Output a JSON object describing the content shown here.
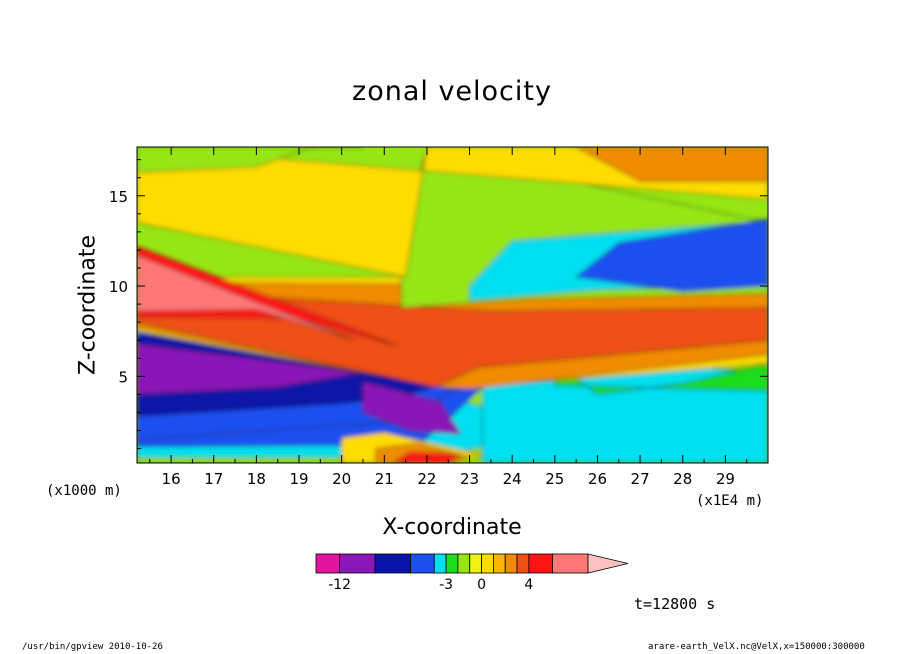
{
  "chart_data": {
    "type": "heatmap",
    "title": "zonal velocity",
    "xlabel": "X-coordinate",
    "ylabel": "Z-coordinate",
    "x_multiplier": "(x1E4 m)",
    "y_multiplier": "(x1000 m)",
    "xlim": [
      15.2,
      30.0
    ],
    "ylim": [
      0.2,
      17.7
    ],
    "xticks": [
      "16",
      "17",
      "18",
      "19",
      "20",
      "21",
      "22",
      "23",
      "24",
      "25",
      "26",
      "27",
      "28",
      "29"
    ],
    "yticks": [
      "5",
      "10",
      "15"
    ],
    "colorbar": {
      "levels": [
        -14,
        -12,
        -9,
        -6,
        -4,
        -3,
        -2,
        -1,
        0,
        1,
        2,
        3,
        4,
        6,
        9
      ],
      "colors": [
        "#e0149e",
        "#8a18b8",
        "#0a14a8",
        "#1e50f0",
        "#00e0f0",
        "#1edc1e",
        "#96e614",
        "#f0f014",
        "#ffdc00",
        "#ffb400",
        "#f08c00",
        "#f05014",
        "#ff1414",
        "#ff7878"
      ],
      "over_color": "#ffc0c0",
      "tick_labels": [
        "-12",
        "-3",
        "0",
        "4"
      ],
      "tick_values": [
        -12,
        -3,
        0,
        4
      ]
    },
    "regions": [
      {
        "value": -1.5,
        "x": [
          15.2,
          24.5,
          24.5,
          15.2
        ],
        "y": [
          0.2,
          0.2,
          9.0,
          9.0
        ]
      },
      {
        "value": -3.5,
        "x": [
          15.2,
          22.2,
          23.5,
          23.8,
          15.2
        ],
        "y": [
          0.5,
          0.5,
          1.2,
          3.0,
          8.5
        ]
      },
      {
        "value": -4.5,
        "x": [
          15.2,
          21.8,
          22.5,
          23.3,
          15.2
        ],
        "y": [
          1.1,
          1.2,
          2.6,
          4.4,
          8.2
        ]
      },
      {
        "value": -6.0,
        "x": [
          15.2,
          21.3,
          22.0,
          23.0,
          15.2
        ],
        "y": [
          1.5,
          2.5,
          3.4,
          4.6,
          7.8
        ]
      },
      {
        "value": -8.0,
        "x": [
          15.2,
          20.0,
          21.2,
          22.5,
          19.0,
          15.2
        ],
        "y": [
          2.8,
          3.5,
          3.8,
          4.6,
          6.8,
          7.3
        ]
      },
      {
        "value": -10.0,
        "x": [
          15.2,
          18.5,
          20.5,
          15.2
        ],
        "y": [
          4.0,
          4.4,
          5.2,
          6.8
        ]
      },
      {
        "value": -12.0,
        "x": [
          20.5,
          21.6,
          22.8,
          22.3,
          20.5
        ],
        "y": [
          3.0,
          2.0,
          1.8,
          3.6,
          4.7
        ]
      },
      {
        "value": 0.5,
        "x": [
          20.0,
          22.0,
          23.4,
          21.0,
          20.0
        ],
        "y": [
          0.2,
          0.2,
          0.6,
          1.9,
          1.6
        ]
      },
      {
        "value": 2.5,
        "x": [
          20.8,
          22.6,
          23.0,
          21.8,
          20.8
        ],
        "y": [
          0.2,
          0.2,
          0.5,
          1.3,
          1.0
        ]
      },
      {
        "value": 4.5,
        "x": [
          21.2,
          22.5,
          22.8,
          21.6
        ],
        "y": [
          0.2,
          0.2,
          0.7,
          0.8
        ]
      },
      {
        "value": -3.5,
        "x": [
          23.3,
          30.0,
          30.0,
          25.5,
          23.3
        ],
        "y": [
          0.2,
          0.2,
          5.2,
          6.0,
          4.8
        ]
      },
      {
        "value": -2.5,
        "x": [
          25.0,
          30.0,
          30.0,
          28.0,
          26.0,
          25.0
        ],
        "y": [
          4.5,
          4.2,
          5.7,
          4.6,
          4.0,
          5.8
        ]
      },
      {
        "value": 0.5,
        "x": [
          15.2,
          22.5,
          30.0,
          30.0,
          15.2
        ],
        "y": [
          7.5,
          4.3,
          5.7,
          10.5,
          10.5
        ]
      },
      {
        "value": 2.0,
        "x": [
          15.2,
          22.2,
          23.0,
          30.0,
          30.0,
          15.2
        ],
        "y": [
          7.7,
          4.4,
          4.3,
          6.2,
          10.0,
          10.2
        ]
      },
      {
        "value": 3.5,
        "x": [
          15.2,
          22.2,
          23.2,
          30.0,
          30.0,
          23.6,
          15.2
        ],
        "y": [
          8.0,
          4.4,
          5.5,
          7.0,
          8.8,
          8.6,
          9.8
        ]
      },
      {
        "value": 5.0,
        "x": [
          15.2,
          19.0,
          21.3,
          15.2
        ],
        "y": [
          8.3,
          8.2,
          6.7,
          12.2
        ]
      },
      {
        "value": 7.0,
        "x": [
          15.2,
          18.0,
          20.3,
          15.2
        ],
        "y": [
          8.6,
          8.7,
          7.0,
          11.7
        ]
      },
      {
        "value": -1.5,
        "x": [
          21.4,
          24.5,
          30.0,
          30.0,
          22.0,
          21.4
        ],
        "y": [
          8.8,
          9.3,
          9.6,
          13.5,
          17.5,
          13.0
        ]
      },
      {
        "value": -3.5,
        "x": [
          23.0,
          26.0,
          30.0,
          30.0,
          24.0,
          23.0
        ],
        "y": [
          9.2,
          9.8,
          10.0,
          13.6,
          12.5,
          10.0
        ]
      },
      {
        "value": -6.0,
        "x": [
          25.5,
          28.0,
          30.0,
          30.0,
          26.5
        ],
        "y": [
          10.5,
          9.7,
          10.0,
          13.7,
          12.4
        ]
      },
      {
        "value": 0.5,
        "x": [
          15.2,
          21.5,
          22.0,
          24.0,
          30.0,
          30.0,
          15.2
        ],
        "y": [
          13.5,
          10.5,
          17.7,
          17.7,
          17.7,
          14.8,
          17.7
        ]
      },
      {
        "value": -3.5,
        "x": [
          15.2,
          17.0,
          17.0,
          15.2
        ],
        "y": [
          16.8,
          17.0,
          17.7,
          17.7
        ]
      },
      {
        "value": -2.0,
        "x": [
          15.2,
          18.0,
          19.3,
          20.5,
          15.2
        ],
        "y": [
          16.3,
          16.6,
          17.7,
          17.7,
          17.7
        ]
      },
      {
        "value": 2.5,
        "x": [
          25.5,
          27.0,
          30.0,
          30.0
        ],
        "y": [
          17.7,
          15.8,
          15.8,
          17.7
        ]
      }
    ]
  },
  "footer": {
    "left": "/usr/bin/gpview  2010-10-26",
    "right": "arare-earth_VelX.nc@VelX,x=150000:300000"
  },
  "time_label": "t=12800 s"
}
